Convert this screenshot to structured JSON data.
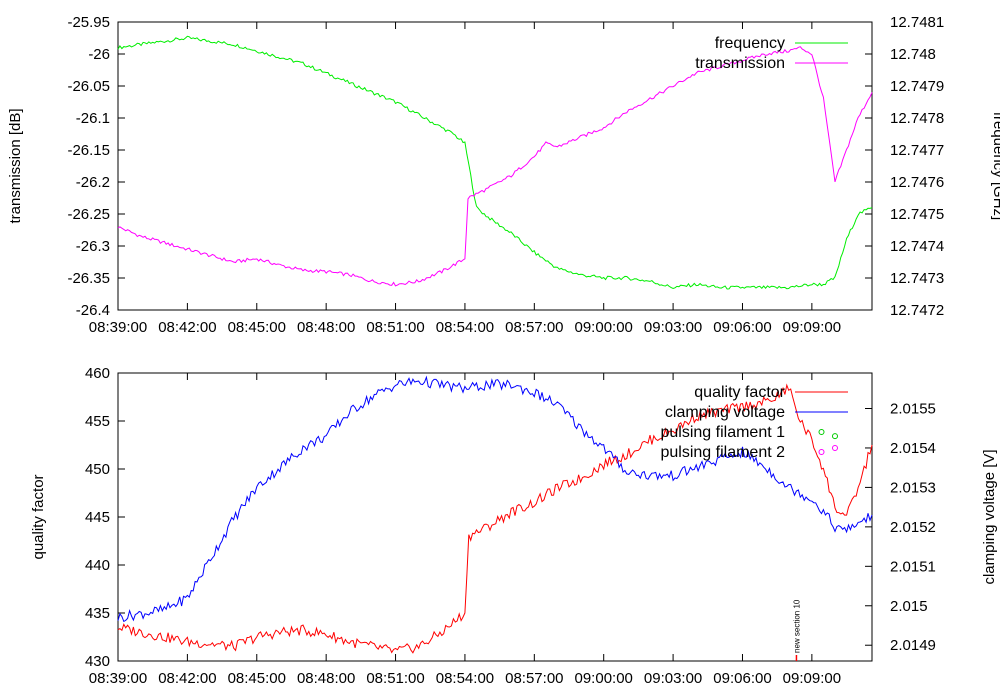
{
  "chart_data": [
    {
      "type": "line",
      "title": "",
      "xlabel": "",
      "ylabel": "transmission [dB]",
      "y2label": "frequency [GHz]",
      "x_ticks": [
        "08:39:00",
        "08:42:00",
        "08:45:00",
        "08:48:00",
        "08:51:00",
        "08:54:00",
        "08:57:00",
        "09:00:00",
        "09:03:00",
        "09:06:00",
        "09:09:00"
      ],
      "x_tick_minutes": [
        0,
        3,
        6,
        9,
        12,
        15,
        18,
        21,
        24,
        27,
        30
      ],
      "xlim_minutes": [
        0,
        32.6
      ],
      "xlim": [
        "08:39:00",
        "09:11:36"
      ],
      "y_ticks": [
        "-25.95",
        "-26",
        "-26.05",
        "-26.1",
        "-26.15",
        "-26.2",
        "-26.25",
        "-26.3",
        "-26.35",
        "-26.4"
      ],
      "ylim": [
        -26.4,
        -25.95
      ],
      "y2_ticks": [
        "12.7481",
        "12.748",
        "12.7479",
        "12.7478",
        "12.7477",
        "12.7476",
        "12.7475",
        "12.7474",
        "12.7473",
        "12.7472"
      ],
      "y2lim": [
        12.7472,
        12.7481
      ],
      "legend_position": "top-right",
      "grid": false,
      "series": [
        {
          "name": "frequency",
          "axis": "right",
          "color": "#00ee00",
          "x": [
            "08:39:00",
            "08:40:00",
            "08:41:00",
            "08:42:00",
            "08:43:00",
            "08:44:00",
            "08:45:00",
            "08:46:00",
            "08:47:00",
            "08:48:00",
            "08:49:00",
            "08:50:00",
            "08:51:00",
            "08:52:00",
            "08:53:00",
            "08:53:30",
            "08:54:00",
            "08:54:30",
            "08:55:00",
            "08:56:00",
            "08:57:00",
            "08:58:00",
            "08:59:00",
            "09:00:00",
            "09:01:00",
            "09:02:00",
            "09:03:00",
            "09:04:00",
            "09:05:00",
            "09:06:00",
            "09:07:00",
            "09:08:00",
            "09:09:00",
            "09:09:30",
            "09:10:00",
            "09:10:30",
            "09:11:00",
            "09:11:36"
          ],
          "values": [
            12.74802,
            12.74803,
            12.74804,
            12.74805,
            12.74804,
            12.74803,
            12.74801,
            12.74799,
            12.74797,
            12.74794,
            12.74791,
            12.74788,
            12.74785,
            12.74781,
            12.74777,
            12.74775,
            12.74772,
            12.74752,
            12.74749,
            12.74744,
            12.74738,
            12.74733,
            12.74731,
            12.7473,
            12.7473,
            12.74729,
            12.74727,
            12.74728,
            12.74727,
            12.74727,
            12.74727,
            12.74727,
            12.74728,
            12.74728,
            12.7473,
            12.74742,
            12.7475,
            12.74752
          ]
        },
        {
          "name": "transmission",
          "axis": "left",
          "color": "#ff00ff",
          "x": [
            "08:39:00",
            "08:40:00",
            "08:41:00",
            "08:42:00",
            "08:43:00",
            "08:44:00",
            "08:45:00",
            "08:46:00",
            "08:47:00",
            "08:48:00",
            "08:49:00",
            "08:50:00",
            "08:51:00",
            "08:52:00",
            "08:53:00",
            "08:54:00",
            "08:54:08",
            "08:55:00",
            "08:56:00",
            "08:57:00",
            "08:57:30",
            "08:58:00",
            "08:59:00",
            "09:00:00",
            "09:01:00",
            "09:02:00",
            "09:03:00",
            "09:04:00",
            "09:05:00",
            "09:06:00",
            "09:07:00",
            "09:08:00",
            "09:08:30",
            "09:09:00",
            "09:09:30",
            "09:10:00",
            "09:10:30",
            "09:11:00",
            "09:11:36"
          ],
          "values": [
            -26.27,
            -26.285,
            -26.295,
            -26.305,
            -26.315,
            -26.325,
            -26.32,
            -26.33,
            -26.338,
            -26.34,
            -26.345,
            -26.355,
            -26.36,
            -26.355,
            -26.34,
            -26.32,
            -26.225,
            -26.21,
            -26.19,
            -26.16,
            -26.14,
            -26.145,
            -26.13,
            -26.115,
            -26.09,
            -26.07,
            -26.05,
            -26.03,
            -26.02,
            -26.01,
            -26.0,
            -25.995,
            -25.99,
            -26.0,
            -26.07,
            -26.2,
            -26.15,
            -26.1,
            -26.06
          ]
        }
      ]
    },
    {
      "type": "line",
      "title": "",
      "xlabel": "",
      "ylabel": "quality factor",
      "y2label": "clamping voltage [V]",
      "x_ticks": [
        "08:39:00",
        "08:42:00",
        "08:45:00",
        "08:48:00",
        "08:51:00",
        "08:54:00",
        "08:57:00",
        "09:00:00",
        "09:03:00",
        "09:06:00",
        "09:09:00"
      ],
      "x_tick_minutes": [
        0,
        3,
        6,
        9,
        12,
        15,
        18,
        21,
        24,
        27,
        30
      ],
      "xlim_minutes": [
        0,
        32.6
      ],
      "xlim": [
        "08:39:00",
        "09:11:36"
      ],
      "y_ticks": [
        "460",
        "455",
        "450",
        "445",
        "440",
        "435",
        "430"
      ],
      "ylim": [
        430,
        460
      ],
      "y2_ticks": [
        "2.0155",
        "2.0154",
        "2.0153",
        "2.0152",
        "2.0151",
        "2.015",
        "2.0149"
      ],
      "y2lim": [
        2.01486,
        2.01559
      ],
      "legend_position": "top-right",
      "grid": false,
      "series": [
        {
          "name": "quality factor",
          "axis": "left",
          "color": "#ff0000",
          "x": [
            "08:39:00",
            "08:40:00",
            "08:41:00",
            "08:42:00",
            "08:43:00",
            "08:44:00",
            "08:45:00",
            "08:46:00",
            "08:47:00",
            "08:48:00",
            "08:49:00",
            "08:50:00",
            "08:51:00",
            "08:52:00",
            "08:53:00",
            "08:54:00",
            "08:54:10",
            "08:55:00",
            "08:56:00",
            "08:57:00",
            "08:58:00",
            "08:59:00",
            "09:00:00",
            "09:01:00",
            "09:02:00",
            "09:03:00",
            "09:04:00",
            "09:05:00",
            "09:06:00",
            "09:07:00",
            "09:07:30",
            "09:08:00",
            "09:08:30",
            "09:09:00",
            "09:09:30",
            "09:10:00",
            "09:10:30",
            "09:11:00",
            "09:11:36"
          ],
          "values": [
            433.5,
            433.0,
            432.5,
            432.0,
            431.8,
            431.5,
            432.5,
            433.0,
            433.2,
            432.8,
            432.0,
            431.5,
            431.0,
            431.5,
            433.0,
            435.0,
            443.0,
            444.0,
            445.5,
            446.5,
            448.0,
            449.0,
            450.5,
            451.5,
            453.0,
            454.0,
            455.5,
            456.0,
            456.5,
            457.0,
            457.5,
            458.5,
            455.0,
            453.0,
            450.0,
            446.0,
            445.0,
            448.0,
            452.5
          ]
        },
        {
          "name": "clamping voltage",
          "axis": "right",
          "color": "#0000ff",
          "x": [
            "08:39:00",
            "08:40:00",
            "08:41:00",
            "08:42:00",
            "08:43:00",
            "08:44:00",
            "08:45:00",
            "08:46:00",
            "08:47:00",
            "08:48:00",
            "08:49:00",
            "08:50:00",
            "08:51:00",
            "08:52:00",
            "08:53:00",
            "08:54:00",
            "08:55:00",
            "08:56:00",
            "08:57:00",
            "08:58:00",
            "08:59:00",
            "09:00:00",
            "09:01:00",
            "09:02:00",
            "09:03:00",
            "09:04:00",
            "09:05:00",
            "09:06:00",
            "09:07:00",
            "09:08:00",
            "09:09:00",
            "09:09:30",
            "09:10:00",
            "09:10:30",
            "09:11:00",
            "09:11:36"
          ],
          "values": [
            2.01497,
            2.01498,
            2.01499,
            2.01502,
            2.01512,
            2.01522,
            2.0153,
            2.01535,
            2.0154,
            2.01543,
            2.01549,
            2.01553,
            2.01556,
            2.01557,
            2.01556,
            2.01555,
            2.01556,
            2.01556,
            2.01554,
            2.01551,
            2.01545,
            2.0154,
            2.01534,
            2.01533,
            2.01533,
            2.01535,
            2.01537,
            2.01539,
            2.01535,
            2.0153,
            2.01527,
            2.01524,
            2.0152,
            2.01519,
            2.01521,
            2.01523
          ]
        },
        {
          "name": "pulsing filament 1",
          "axis": "right",
          "color": "#00cc00",
          "marker": "circle",
          "x": [
            "09:10:00"
          ],
          "values": [
            2.01543
          ]
        },
        {
          "name": "pulsing filament 2",
          "axis": "right",
          "color": "#ff00ff",
          "marker": "circle",
          "x": [
            "09:10:00"
          ],
          "values": [
            2.0154
          ]
        }
      ],
      "annotations": [
        {
          "text": "new section 10",
          "x": "09:08:20",
          "orientation": "vertical"
        }
      ]
    }
  ]
}
